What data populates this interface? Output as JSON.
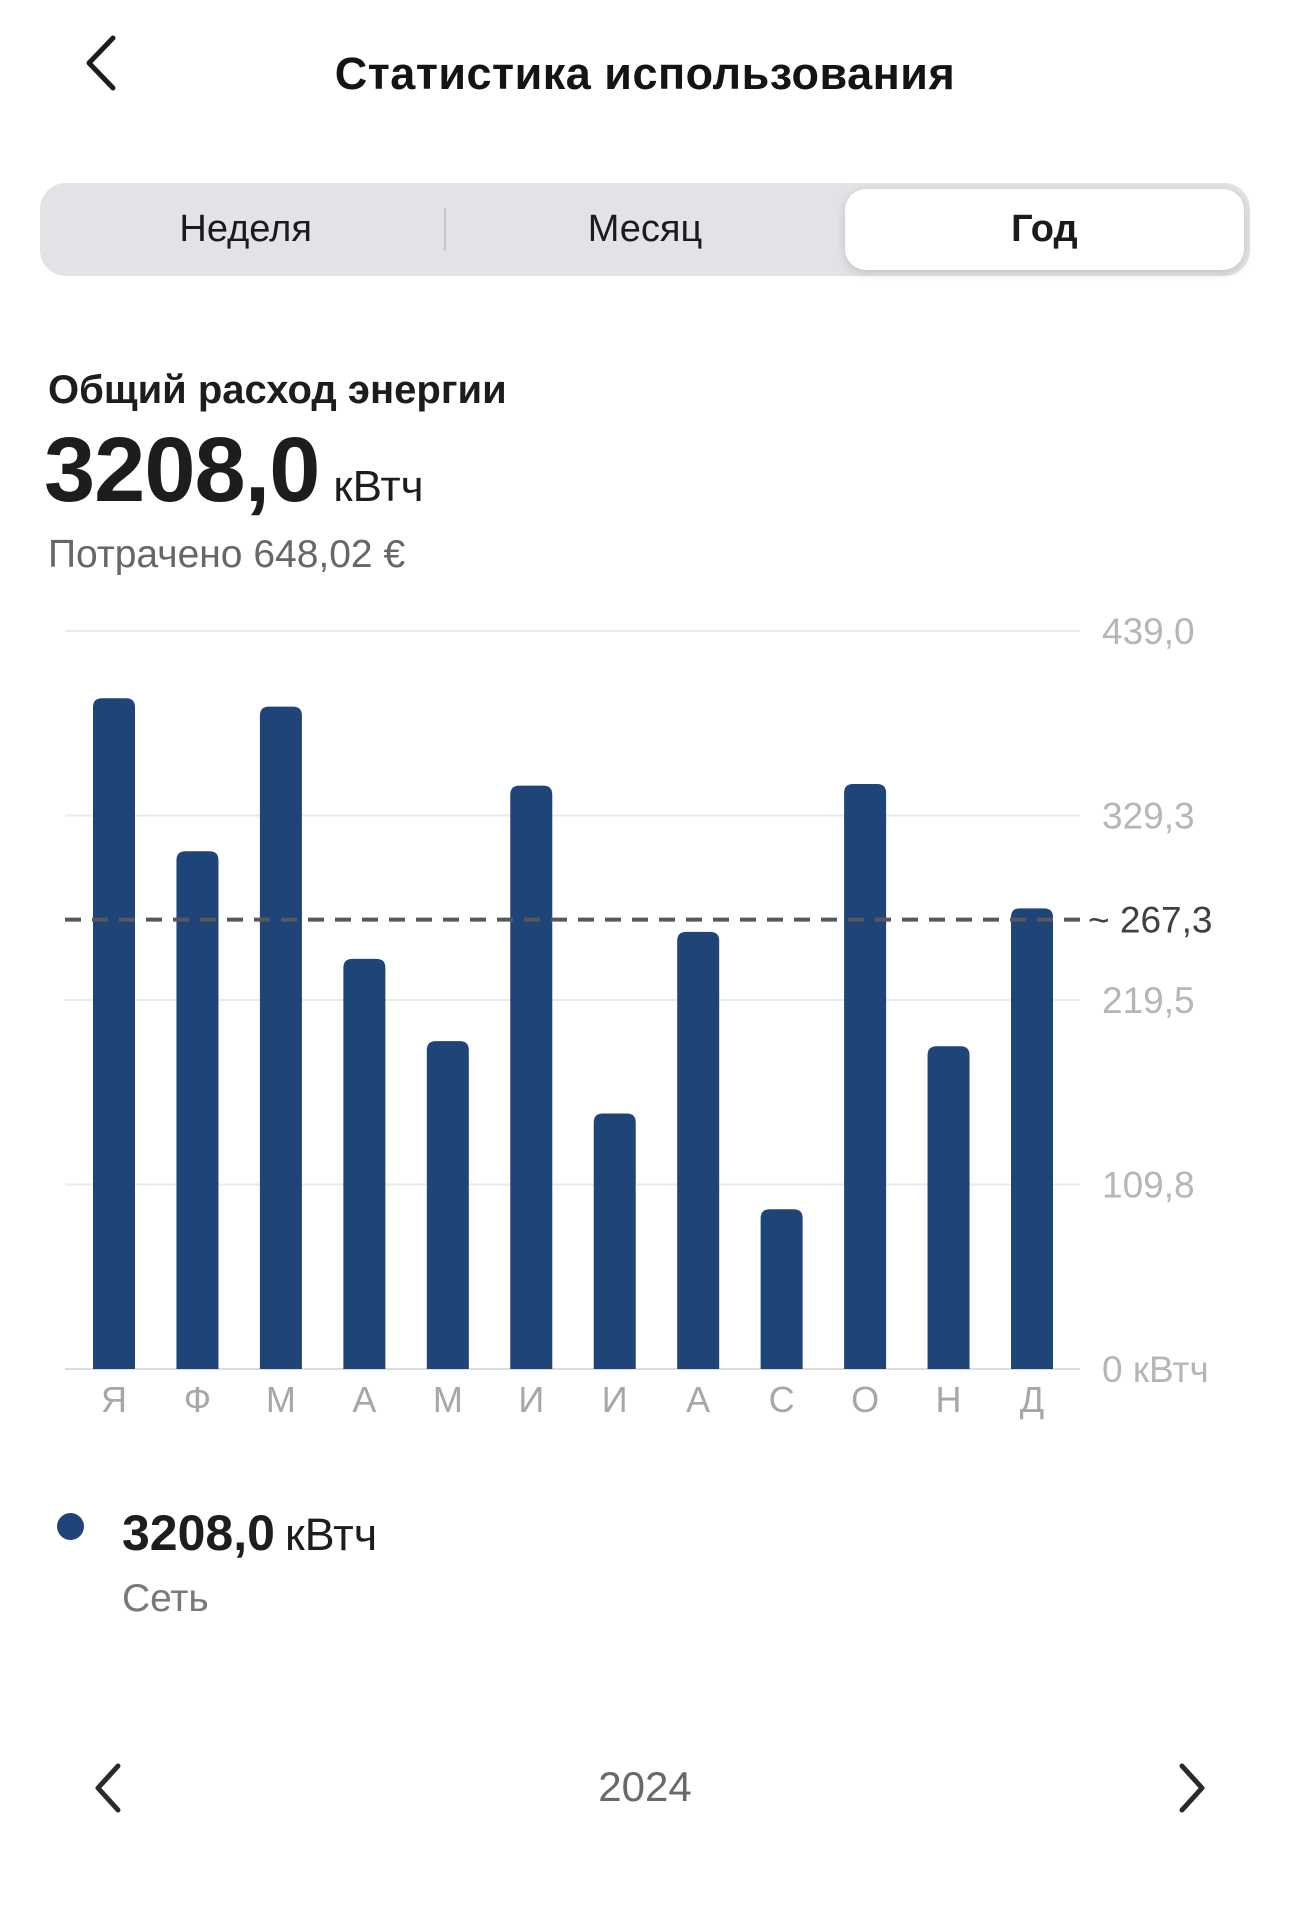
{
  "header": {
    "title": "Статистика использования",
    "back_icon": "chevron-left-icon"
  },
  "tabs": {
    "items": [
      {
        "key": "week",
        "label": "Неделя",
        "selected": false
      },
      {
        "key": "month",
        "label": "Месяц",
        "selected": false
      },
      {
        "key": "year",
        "label": "Год",
        "selected": true
      }
    ]
  },
  "summary": {
    "label": "Общий расход энергии",
    "value": "3208,0",
    "unit": "кВтч",
    "spent": "Потрачено 648,02 €"
  },
  "chart_data": {
    "type": "bar",
    "title": "Общий расход энергии, кВтч по месяцам",
    "categories": [
      "Я",
      "Ф",
      "М",
      "А",
      "М",
      "И",
      "И",
      "А",
      "С",
      "О",
      "Н",
      "Д"
    ],
    "values": [
      399,
      308,
      394,
      244,
      195,
      347,
      152,
      260,
      95,
      348,
      192,
      274
    ],
    "total": 3208.0,
    "unit": "кВтч",
    "xlabel": "",
    "ylabel": "кВтч",
    "ylim": [
      0,
      439
    ],
    "yticks": [
      {
        "value": 0,
        "label": "0 кВтч"
      },
      {
        "value": 109.75,
        "label": "109,8"
      },
      {
        "value": 219.5,
        "label": "219,5"
      },
      {
        "value": 329.25,
        "label": "329,3"
      },
      {
        "value": 439,
        "label": "439,0"
      }
    ],
    "average_line": {
      "value": 267.3,
      "label": "~ 267,3"
    },
    "bar_color": "#1F4478",
    "grid": true,
    "axis_side": "right",
    "legend_position": "bottom-left"
  },
  "legend": {
    "value": "3208,0",
    "unit": "кВтч",
    "series_label": "Сеть",
    "dot_color": "#1F4478"
  },
  "pager": {
    "year": "2024",
    "prev_icon": "chevron-left-icon",
    "next_icon": "chevron-right-icon"
  },
  "colors": {
    "bar": "#1F4478",
    "gridline": "#eaeaec",
    "baseline": "#dcdcdf",
    "dashed_line": "#58585c",
    "tick_label": "#b5b5ba",
    "avg_label": "#404044",
    "month_label": "#a6a6ab"
  }
}
